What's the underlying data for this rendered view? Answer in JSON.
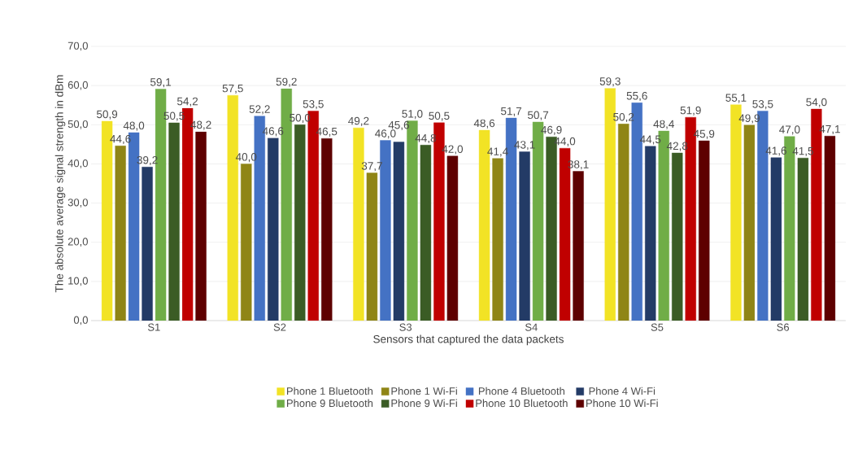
{
  "chart_data": {
    "type": "bar",
    "xlabel": "Sensors that captured the data packets",
    "ylabel": "The absolute average signal strength in dBm",
    "categories": [
      "S1",
      "S2",
      "S3",
      "S4",
      "S5",
      "S6"
    ],
    "series": [
      {
        "name": "Phone 1 Bluetooth",
        "color": "#f2e325",
        "values": [
          50.9,
          57.5,
          49.2,
          48.6,
          59.3,
          55.1
        ],
        "value_labels": [
          "50,9",
          "57,5",
          "49,2",
          "48,6",
          "59,3",
          "55,1"
        ]
      },
      {
        "name": "Phone 1 Wi-Fi",
        "color": "#8f8516",
        "values": [
          44.6,
          40.0,
          37.7,
          41.4,
          50.2,
          49.9
        ],
        "value_labels": [
          "44,6",
          "40,0",
          "37,7",
          "41,4",
          "50,2",
          "49,9"
        ]
      },
      {
        "name": "Phone 4 Bluetooth",
        "color": "#4472c4",
        "values": [
          48.0,
          52.2,
          46.0,
          51.7,
          55.6,
          53.5
        ],
        "value_labels": [
          "48,0",
          "52,2",
          "46,0",
          "51,7",
          "55,6",
          "53,5"
        ]
      },
      {
        "name": "Phone 4 Wi-Fi",
        "color": "#233b66",
        "values": [
          39.2,
          46.6,
          45.6,
          43.1,
          44.5,
          41.6
        ],
        "value_labels": [
          "39,2",
          "46,6",
          "45,6",
          "43,1",
          "44,5",
          "41,6"
        ]
      },
      {
        "name": "Phone 9 Bluetooth",
        "color": "#70ad47",
        "values": [
          59.1,
          59.2,
          51.0,
          50.7,
          48.4,
          47.0
        ],
        "value_labels": [
          "59,1",
          "59,2",
          "51,0",
          "50,7",
          "48,4",
          "47,0"
        ]
      },
      {
        "name": "Phone 9 Wi-Fi",
        "color": "#3b5c25",
        "values": [
          50.5,
          50.0,
          44.8,
          46.9,
          42.8,
          41.5
        ],
        "value_labels": [
          "50,5",
          "50,0",
          "44,8",
          "46,9",
          "42,8",
          "41,5"
        ]
      },
      {
        "name": "Phone 10 Bluetooth",
        "color": "#c00000",
        "values": [
          54.2,
          53.5,
          50.5,
          44.0,
          51.9,
          54.0
        ],
        "value_labels": [
          "54,2",
          "53,5",
          "50,5",
          "44,0",
          "51,9",
          "54,0"
        ]
      },
      {
        "name": "Phone 10 Wi-Fi",
        "color": "#5e0000",
        "values": [
          48.2,
          46.5,
          42.0,
          38.1,
          45.9,
          47.1
        ],
        "value_labels": [
          "48,2",
          "46,5",
          "42,0",
          "38,1",
          "45,9",
          "47,1"
        ]
      }
    ],
    "ylim": [
      0,
      70
    ],
    "yticks": [
      {
        "value": 0,
        "label": "0,0"
      },
      {
        "value": 10,
        "label": "10,0"
      },
      {
        "value": 20,
        "label": "20,0"
      },
      {
        "value": 30,
        "label": "30,0"
      },
      {
        "value": 40,
        "label": "40,0"
      },
      {
        "value": 50,
        "label": "50,0"
      },
      {
        "value": 60,
        "label": "60,0"
      },
      {
        "value": 70,
        "label": "70,0"
      }
    ],
    "grid": "y",
    "legend": "bottom"
  }
}
